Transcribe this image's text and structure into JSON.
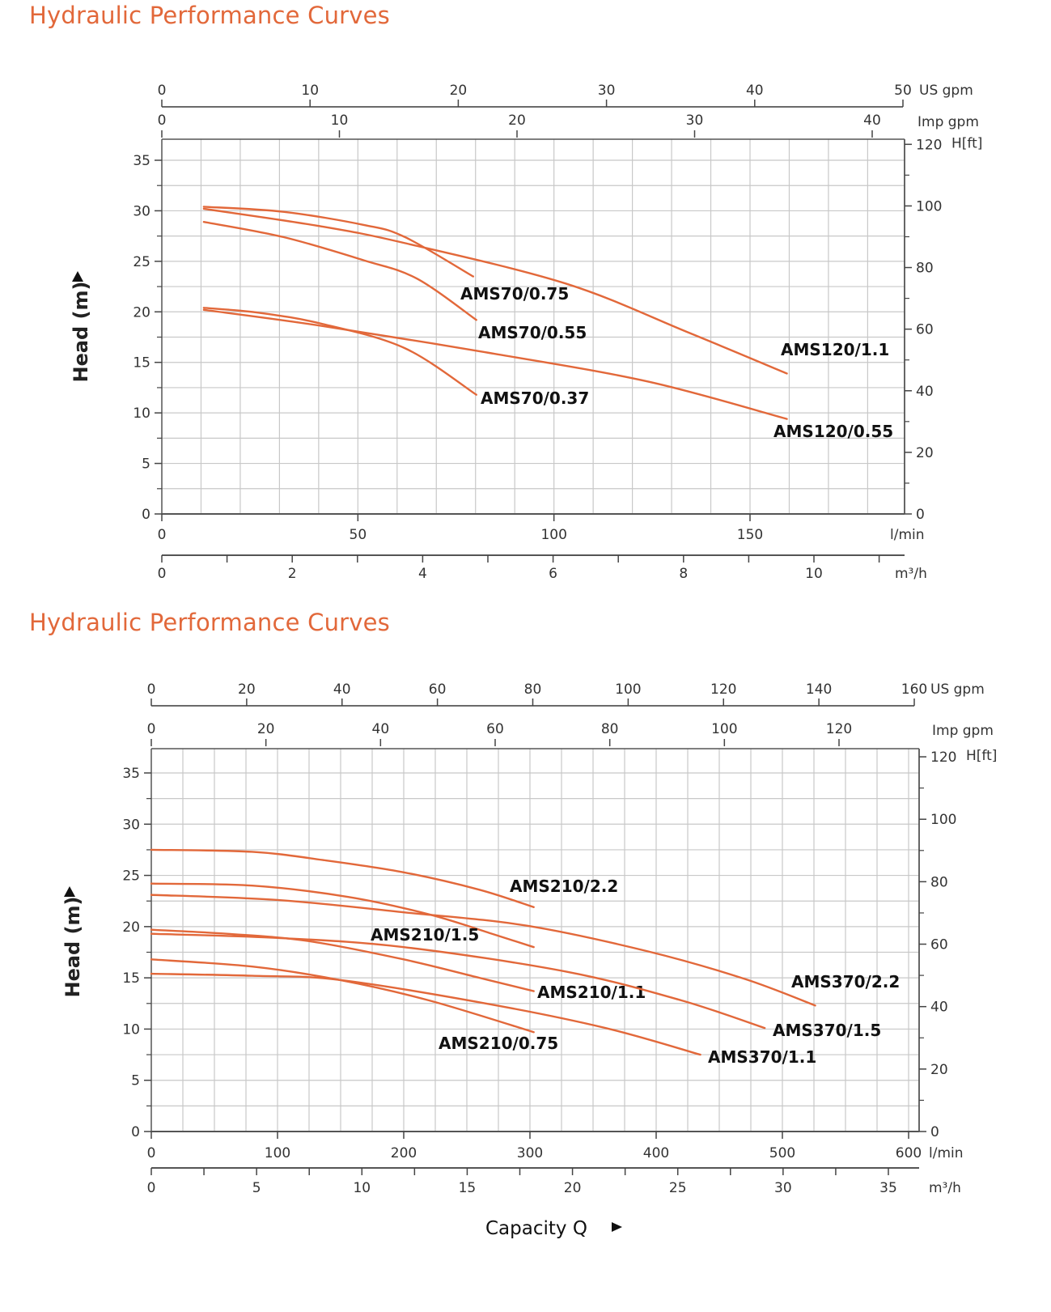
{
  "page": {
    "curve_color": "#e2683a",
    "title_color": "#e2683a"
  },
  "chart_data": [
    {
      "type": "line",
      "title": "Hydraulic Performance Curves",
      "xlabel": "l/min",
      "ylabel": "Head (m)",
      "xlim": [
        0,
        189
      ],
      "ylim": [
        0,
        37
      ],
      "grid": true,
      "legend": "inline-labels",
      "x_ticks": [
        0,
        50,
        100,
        150
      ],
      "y_ticks": [
        0,
        5,
        10,
        15,
        20,
        25,
        30,
        35
      ],
      "secondary_axes": {
        "us_gpm": {
          "label": "US gpm",
          "ticks": [
            0,
            10,
            20,
            30,
            40,
            50
          ]
        },
        "imp_gpm": {
          "label": "Imp gpm",
          "ticks": [
            0,
            10,
            20,
            30,
            40
          ]
        },
        "m3h": {
          "label": "m³/h",
          "ticks": [
            0,
            2,
            4,
            6,
            8,
            10
          ]
        },
        "head_ft": {
          "label": "H[ft]",
          "ticks": [
            0,
            20,
            40,
            60,
            80,
            100,
            120
          ]
        }
      },
      "series": [
        {
          "name": "AMS70/0.75",
          "x": [
            10.7,
            31,
            51.5,
            62,
            79.4
          ],
          "y": [
            30.4,
            29.9,
            28.6,
            27.4,
            23.5
          ]
        },
        {
          "name": "AMS70/0.55",
          "x": [
            10.7,
            31,
            51.5,
            65,
            80.2
          ],
          "y": [
            28.9,
            27.4,
            25.1,
            23.3,
            19.2
          ]
        },
        {
          "name": "AMS120/1.1",
          "x": [
            10.7,
            40,
            62,
            103,
            134,
            159.4
          ],
          "y": [
            30.2,
            28.5,
            26.8,
            22.8,
            18.0,
            13.9
          ]
        },
        {
          "name": "AMS70/0.37",
          "x": [
            10.7,
            25,
            41,
            62,
            80.2
          ],
          "y": [
            20.4,
            19.9,
            18.8,
            16.4,
            11.8
          ]
        },
        {
          "name": "AMS120/0.55",
          "x": [
            10.7,
            41,
            82.5,
            124,
            159.4
          ],
          "y": [
            20.2,
            18.6,
            16.0,
            13.1,
            9.4
          ]
        }
      ]
    },
    {
      "type": "line",
      "title": "Hydraulic Performance Curves",
      "xlabel": "l/min",
      "ylabel": "Head (m)",
      "caption": "Capacity Q",
      "xlim": [
        0,
        600
      ],
      "ylim": [
        0,
        37
      ],
      "grid": true,
      "legend": "inline-labels",
      "x_ticks": [
        0,
        100,
        200,
        300,
        400,
        500,
        600
      ],
      "y_ticks": [
        0,
        5,
        10,
        15,
        20,
        25,
        30,
        35
      ],
      "secondary_axes": {
        "us_gpm": {
          "label": "US gpm",
          "ticks": [
            0,
            20,
            40,
            60,
            80,
            100,
            120,
            140,
            160
          ]
        },
        "imp_gpm": {
          "label": "Imp gpm",
          "ticks": [
            0,
            20,
            40,
            60,
            80,
            100,
            120
          ]
        },
        "m3h": {
          "label": "m³/h",
          "ticks": [
            0,
            5,
            10,
            15,
            20,
            25,
            30,
            35
          ]
        },
        "head_ft": {
          "label": "H[ft]",
          "ticks": [
            0,
            20,
            40,
            60,
            80,
            100,
            120
          ]
        }
      },
      "series": [
        {
          "name": "AMS210/2.2",
          "x": [
            0,
            80,
            136,
            200,
            260,
            303
          ],
          "y": [
            27.5,
            27.3,
            26.5,
            25.3,
            23.6,
            21.9
          ]
        },
        {
          "name": "AMS210/1.5",
          "x": [
            0,
            80,
            156,
            220,
            270,
            303
          ],
          "y": [
            24.2,
            24.0,
            22.9,
            21.2,
            19.3,
            18.0
          ]
        },
        {
          "name": "AMS370/2.2",
          "x": [
            0,
            100,
            200,
            297,
            393,
            470,
            526
          ],
          "y": [
            23.1,
            22.6,
            21.4,
            20.1,
            17.6,
            14.9,
            12.3
          ]
        },
        {
          "name": "AMS210/1.1",
          "x": [
            0,
            60,
            124,
            200,
            260,
            303
          ],
          "y": [
            19.7,
            19.3,
            18.6,
            16.8,
            15.0,
            13.7
          ]
        },
        {
          "name": "AMS370/1.5",
          "x": [
            0,
            100,
            200,
            329,
            420,
            486
          ],
          "y": [
            19.3,
            18.9,
            18.0,
            15.6,
            12.8,
            10.1
          ]
        },
        {
          "name": "AMS210/0.75",
          "x": [
            0,
            80,
            149,
            220,
            303
          ],
          "y": [
            16.8,
            16.1,
            14.8,
            12.8,
            9.7
          ]
        },
        {
          "name": "AMS370/1.1",
          "x": [
            0,
            80,
            149,
            265,
            360,
            435
          ],
          "y": [
            15.4,
            15.2,
            14.8,
            12.5,
            10.1,
            7.5
          ]
        }
      ]
    }
  ]
}
